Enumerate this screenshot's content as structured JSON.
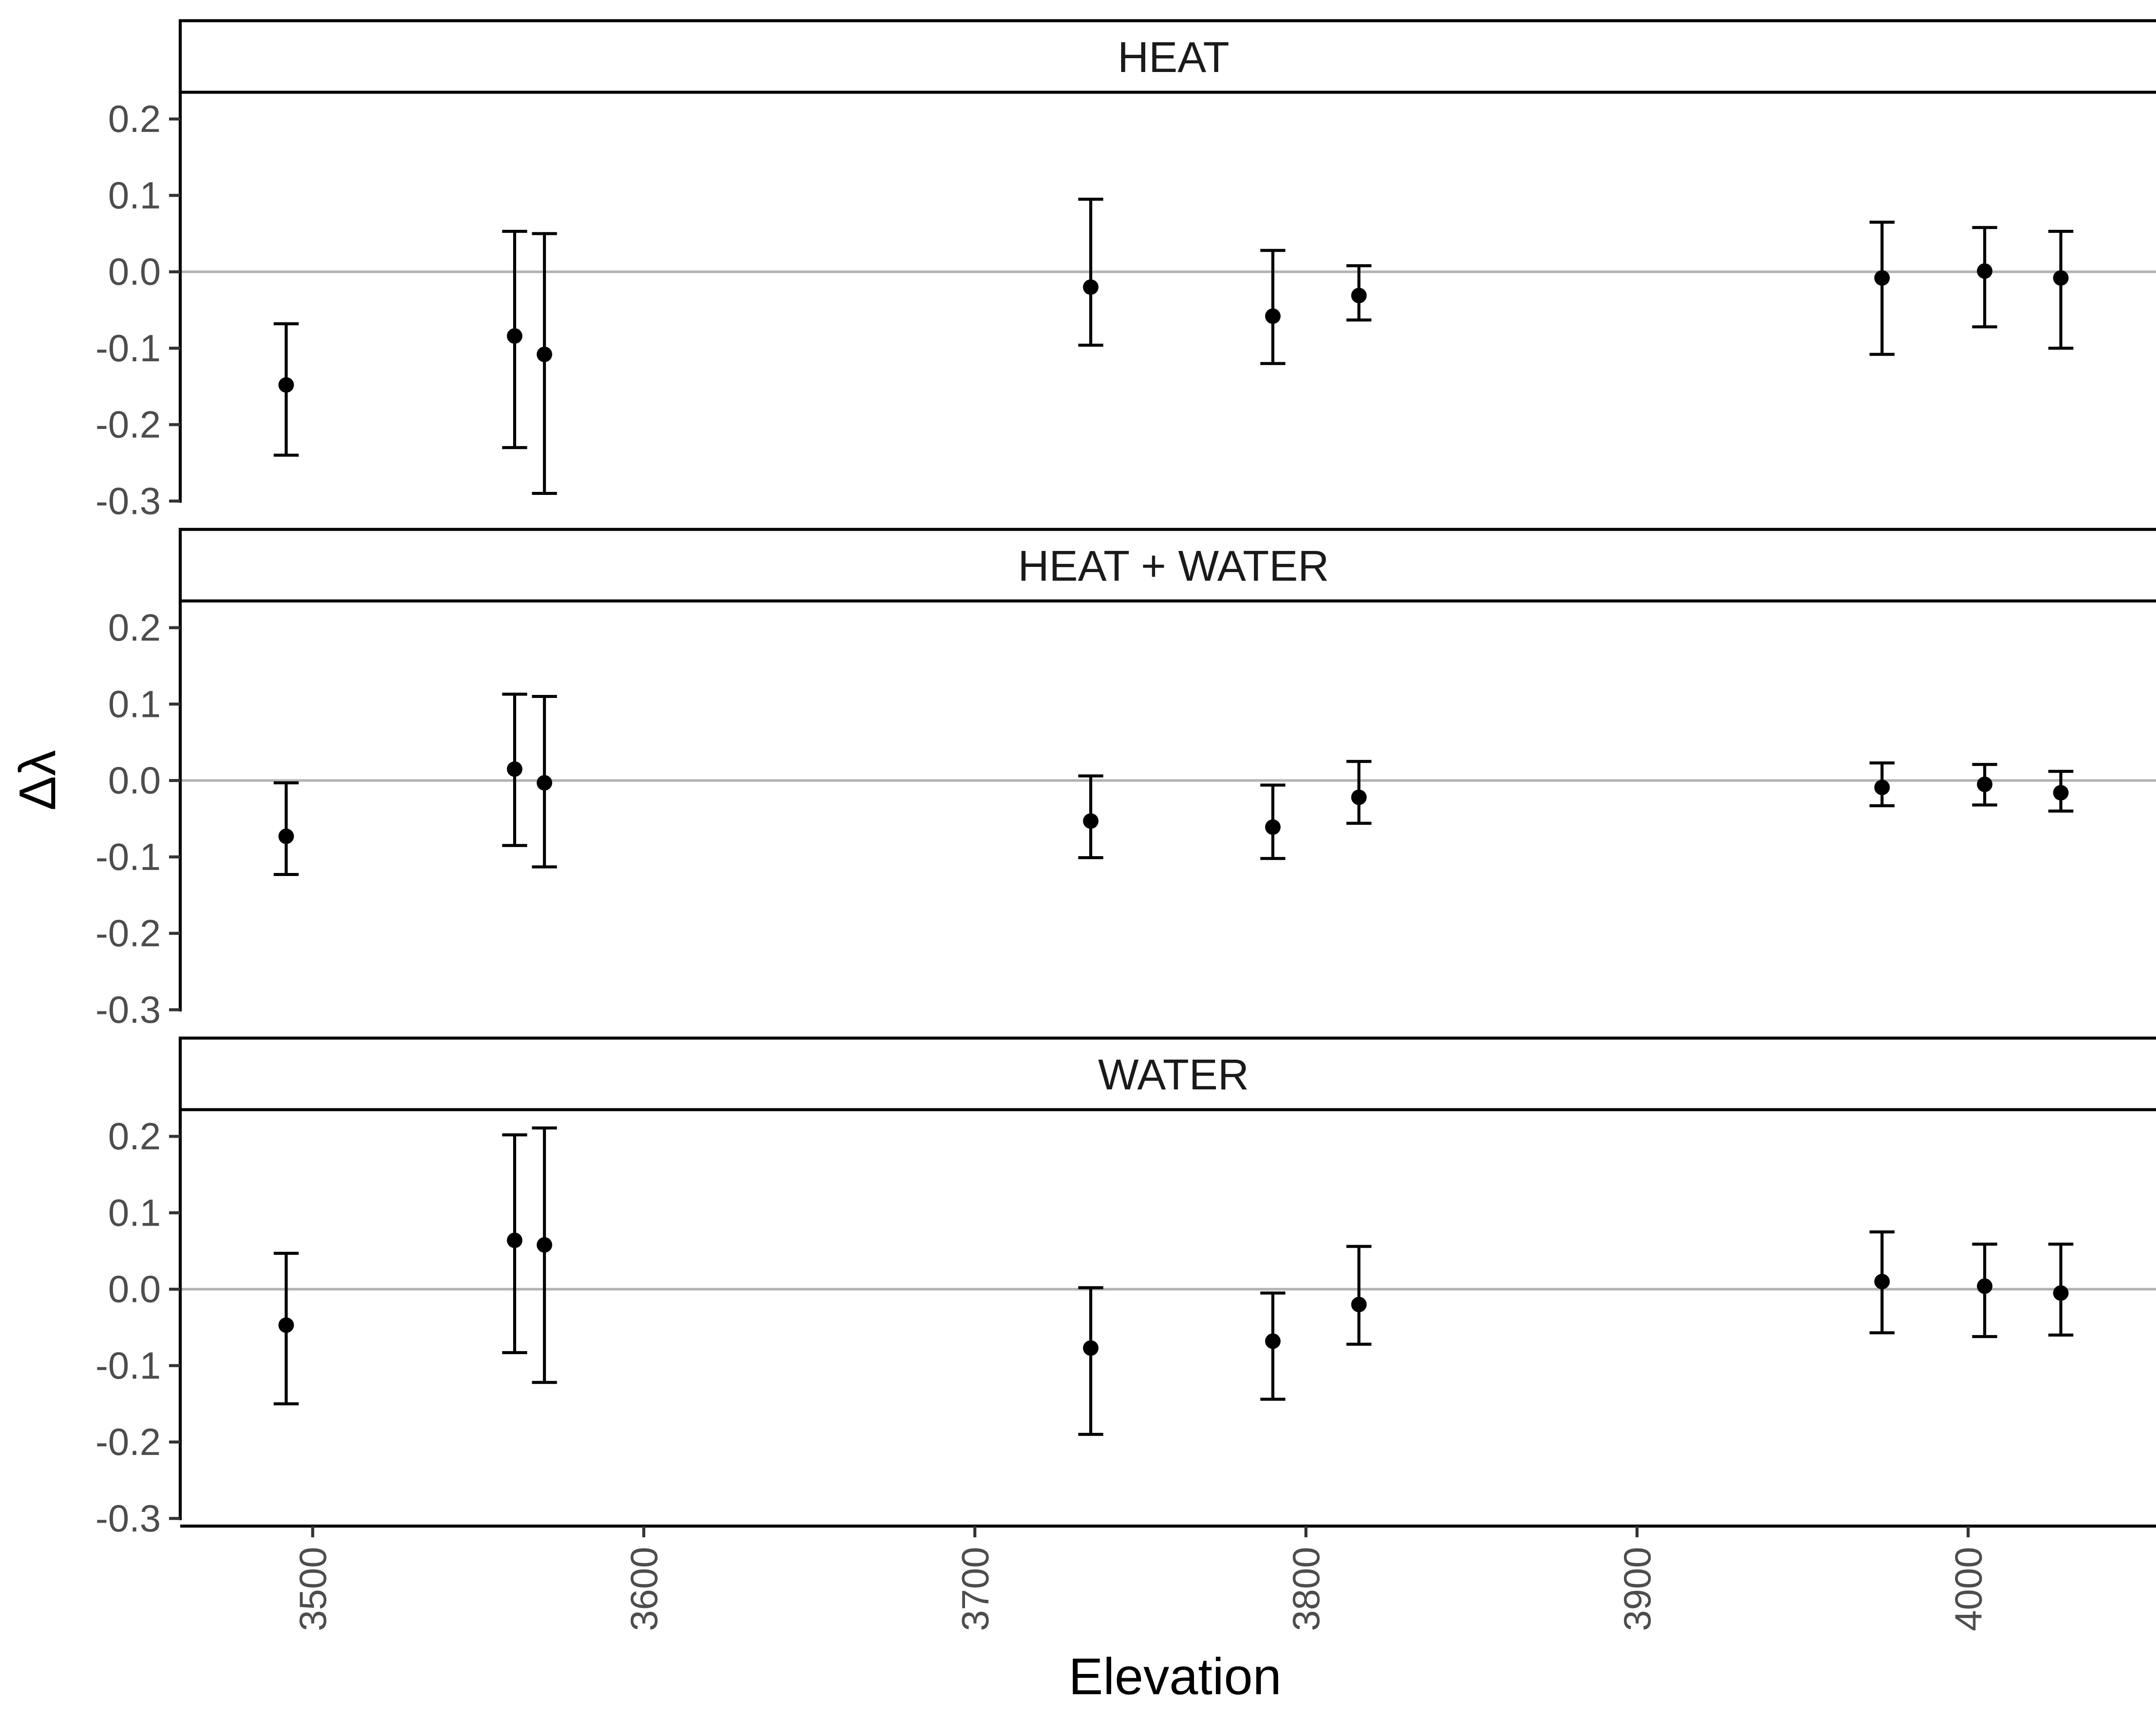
{
  "chart_data": {
    "type": "scatter",
    "error_bars": true,
    "facet_layout": "vertical",
    "xlabel": "Elevation",
    "ylabel": "Δλ",
    "xlim": [
      3460,
      4060
    ],
    "ylim": [
      -0.31,
      0.235
    ],
    "x_ticks": [
      3500,
      3600,
      3700,
      3800,
      3900,
      4000
    ],
    "y_ticks": [
      0.2,
      0.1,
      0.0,
      -0.1,
      -0.2,
      -0.3
    ],
    "y_tick_labels": [
      "0.2",
      "0.1",
      "0.0",
      "-0.1",
      "-0.2",
      "-0.3"
    ],
    "reference_line_y": 0,
    "grid": false,
    "legend": "none",
    "colors": {
      "points": "#000000",
      "reference_line": "#b3b3b3",
      "axis": "#000000",
      "tick_label": "#4d4d4d"
    },
    "panels": [
      {
        "title": "HEAT",
        "points": [
          {
            "x": 3492,
            "y": -0.148,
            "lo": -0.24,
            "hi": -0.068
          },
          {
            "x": 3561,
            "y": -0.084,
            "lo": -0.23,
            "hi": 0.053
          },
          {
            "x": 3570,
            "y": -0.108,
            "lo": -0.29,
            "hi": 0.05
          },
          {
            "x": 3735,
            "y": -0.02,
            "lo": -0.096,
            "hi": 0.095
          },
          {
            "x": 3790,
            "y": -0.058,
            "lo": -0.12,
            "hi": 0.028
          },
          {
            "x": 3816,
            "y": -0.031,
            "lo": -0.063,
            "hi": 0.008
          },
          {
            "x": 3974,
            "y": -0.008,
            "lo": -0.108,
            "hi": 0.065
          },
          {
            "x": 4005,
            "y": 0.001,
            "lo": -0.072,
            "hi": 0.058
          },
          {
            "x": 4028,
            "y": -0.008,
            "lo": -0.1,
            "hi": 0.053
          }
        ]
      },
      {
        "title": "HEAT + WATER",
        "points": [
          {
            "x": 3492,
            "y": -0.073,
            "lo": -0.123,
            "hi": -0.003
          },
          {
            "x": 3561,
            "y": 0.015,
            "lo": -0.085,
            "hi": 0.113
          },
          {
            "x": 3570,
            "y": -0.003,
            "lo": -0.113,
            "hi": 0.11
          },
          {
            "x": 3735,
            "y": -0.053,
            "lo": -0.101,
            "hi": 0.006
          },
          {
            "x": 3790,
            "y": -0.061,
            "lo": -0.102,
            "hi": -0.006
          },
          {
            "x": 3816,
            "y": -0.022,
            "lo": -0.056,
            "hi": 0.025
          },
          {
            "x": 3974,
            "y": -0.009,
            "lo": -0.033,
            "hi": 0.023
          },
          {
            "x": 4005,
            "y": -0.005,
            "lo": -0.032,
            "hi": 0.021
          },
          {
            "x": 4028,
            "y": -0.016,
            "lo": -0.04,
            "hi": 0.012
          }
        ]
      },
      {
        "title": "WATER",
        "points": [
          {
            "x": 3492,
            "y": -0.047,
            "lo": -0.15,
            "hi": 0.047
          },
          {
            "x": 3561,
            "y": 0.064,
            "lo": -0.083,
            "hi": 0.202
          },
          {
            "x": 3570,
            "y": 0.058,
            "lo": -0.122,
            "hi": 0.211
          },
          {
            "x": 3735,
            "y": -0.077,
            "lo": -0.19,
            "hi": 0.002
          },
          {
            "x": 3790,
            "y": -0.068,
            "lo": -0.144,
            "hi": -0.005
          },
          {
            "x": 3816,
            "y": -0.02,
            "lo": -0.072,
            "hi": 0.056
          },
          {
            "x": 3974,
            "y": 0.01,
            "lo": -0.057,
            "hi": 0.075
          },
          {
            "x": 4005,
            "y": 0.004,
            "lo": -0.062,
            "hi": 0.059
          },
          {
            "x": 4028,
            "y": -0.005,
            "lo": -0.06,
            "hi": 0.059
          }
        ]
      }
    ]
  }
}
